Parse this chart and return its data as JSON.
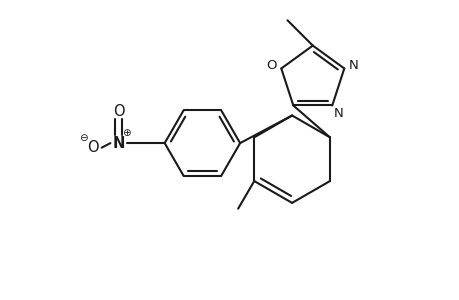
{
  "background_color": "#ffffff",
  "line_color": "#1a1a1a",
  "line_width": 1.5,
  "font_size": 9.5,
  "fig_width": 4.6,
  "fig_height": 3.0,
  "dpi": 100,
  "xlim": [
    0,
    10
  ],
  "ylim": [
    0,
    6.5
  ]
}
